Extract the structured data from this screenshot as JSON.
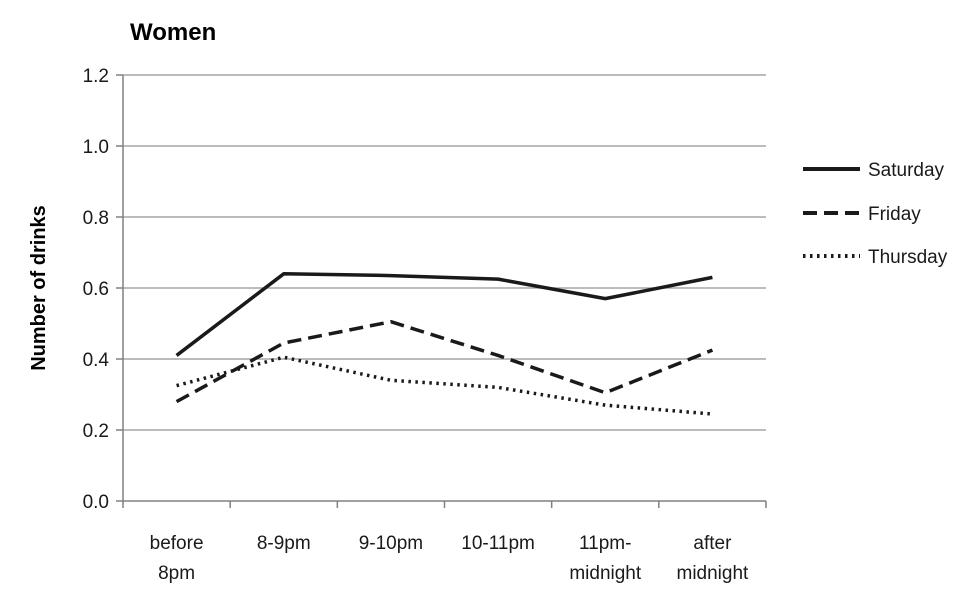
{
  "chart_data": {
    "type": "line",
    "title": "Women",
    "xlabel": "",
    "ylabel": "Number of drinks",
    "ylim": [
      0,
      1.2
    ],
    "yticks": [
      "0.0",
      "0.2",
      "0.4",
      "0.6",
      "0.8",
      "1.0",
      "1.2"
    ],
    "categories": [
      [
        "before",
        "8pm"
      ],
      [
        "8-9pm"
      ],
      [
        "9-10pm"
      ],
      [
        "10-11pm"
      ],
      [
        "11pm-",
        "midnight"
      ],
      [
        "after",
        "midnight"
      ]
    ],
    "grid": true,
    "legend_position": "right",
    "series": [
      {
        "name": "Saturday",
        "style": "solid",
        "color": "#1a1a1a",
        "values": [
          0.41,
          0.64,
          0.635,
          0.625,
          0.57,
          0.63
        ]
      },
      {
        "name": "Friday",
        "style": "dashed",
        "color": "#1a1a1a",
        "values": [
          0.28,
          0.445,
          0.505,
          0.41,
          0.305,
          0.425
        ]
      },
      {
        "name": "Thursday",
        "style": "dotted",
        "color": "#1a1a1a",
        "values": [
          0.325,
          0.405,
          0.34,
          0.32,
          0.27,
          0.245
        ]
      }
    ]
  }
}
